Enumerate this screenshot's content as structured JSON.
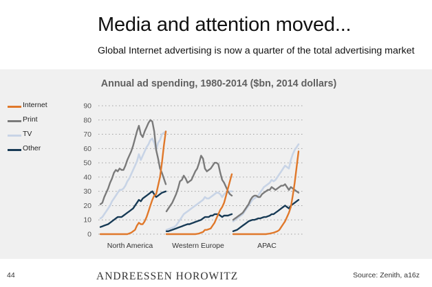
{
  "slide": {
    "title": "Media and attention moved...",
    "subtitle": "Global Internet advertising is now a quarter of the total advertising market",
    "page_number": "44",
    "brand": "ANDREESSEN HOROWITZ",
    "source": "Source: Zenith, a16z"
  },
  "colors": {
    "Internet": "#e0782a",
    "Print": "#7a7a7a",
    "TV": "#c8d4e6",
    "Other": "#173a55",
    "panel_background": "#f0f0f0",
    "gridline": "#a0a0a0"
  },
  "chart_data": {
    "type": "line",
    "title": "Annual ad spending, 1980-2014 ($bn, 2014 dollars)",
    "xlabel": "",
    "ylabel": "",
    "ylim": [
      0,
      90
    ],
    "yticks": [
      0,
      10,
      20,
      30,
      40,
      50,
      60,
      70,
      80,
      90
    ],
    "grid": "horizontal dotted",
    "legend_position": "left",
    "x_range": [
      1980,
      2014
    ],
    "legend": [
      "Internet",
      "Print",
      "TV",
      "Other"
    ],
    "panels": [
      {
        "region": "North America",
        "series": [
          {
            "name": "Internet",
            "x": [
              1980,
              1994,
              1995,
              1996,
              1997,
              1998,
              1999,
              2000,
              2001,
              2002,
              2003,
              2004,
              2005,
              2006,
              2007,
              2008,
              2009,
              2010,
              2011,
              2012,
              2013,
              2014
            ],
            "values": [
              0,
              0,
              0.5,
              1,
              2,
              3,
              6,
              8,
              7,
              7,
              9,
              12,
              16,
              20,
              24,
              27,
              28,
              34,
              40,
              50,
              62,
              72
            ]
          },
          {
            "name": "Print",
            "x": [
              1980,
              1981,
              1982,
              1983,
              1984,
              1985,
              1986,
              1987,
              1988,
              1989,
              1990,
              1991,
              1992,
              1993,
              1994,
              1995,
              1996,
              1997,
              1998,
              1999,
              2000,
              2001,
              2002,
              2003,
              2004,
              2005,
              2006,
              2007,
              2008,
              2009,
              2010,
              2011,
              2012,
              2013,
              2014
            ],
            "values": [
              21,
              22,
              26,
              29,
              32,
              36,
              39,
              43,
              45,
              44,
              46,
              45,
              45,
              48,
              52,
              55,
              58,
              62,
              67,
              72,
              76,
              70,
              68,
              72,
              75,
              78,
              80,
              79,
              72,
              59,
              53,
              46,
              43,
              39,
              35
            ]
          },
          {
            "name": "TV",
            "x": [
              1980,
              1981,
              1982,
              1983,
              1984,
              1985,
              1986,
              1987,
              1988,
              1989,
              1990,
              1991,
              1992,
              1993,
              1994,
              1995,
              1996,
              1997,
              1998,
              1999,
              2000,
              2001,
              2002,
              2003,
              2004,
              2005,
              2006,
              2007,
              2008,
              2009,
              2010,
              2011,
              2012,
              2013,
              2014
            ],
            "values": [
              11,
              12,
              14,
              16,
              18,
              20,
              23,
              25,
              27,
              29,
              31,
              31,
              32,
              34,
              37,
              39,
              42,
              45,
              48,
              51,
              56,
              52,
              55,
              58,
              61,
              63,
              66,
              67,
              64,
              59,
              64,
              66,
              70,
              71,
              72
            ]
          },
          {
            "name": "Other",
            "x": [
              1980,
              1981,
              1982,
              1983,
              1984,
              1985,
              1986,
              1987,
              1988,
              1989,
              1990,
              1991,
              1992,
              1993,
              1994,
              1995,
              1996,
              1997,
              1998,
              1999,
              2000,
              2001,
              2002,
              2003,
              2004,
              2005,
              2006,
              2007,
              2008,
              2009,
              2010,
              2011,
              2012,
              2013,
              2014
            ],
            "values": [
              5,
              5.5,
              6,
              6.5,
              7,
              8,
              9,
              10,
              11,
              12,
              12,
              12,
              13,
              14,
              15,
              16,
              17,
              18,
              20,
              22,
              24,
              23,
              25,
              26,
              27,
              28,
              29,
              30,
              28,
              26,
              27,
              28,
              29,
              29.5,
              30
            ]
          }
        ]
      },
      {
        "region": "Western Europe",
        "series": [
          {
            "name": "Internet",
            "x": [
              1980,
              1995,
              1996,
              1997,
              1998,
              1999,
              2000,
              2001,
              2002,
              2003,
              2004,
              2005,
              2006,
              2007,
              2008,
              2009,
              2010,
              2011,
              2012,
              2013,
              2014
            ],
            "values": [
              0,
              0,
              0.2,
              0.5,
              1,
              1.5,
              3,
              3,
              3.5,
              4,
              6,
              8,
              11,
              14,
              17,
              19,
              22,
              27,
              32,
              37,
              42
            ]
          },
          {
            "name": "Print",
            "x": [
              1980,
              1981,
              1982,
              1983,
              1984,
              1985,
              1986,
              1987,
              1988,
              1989,
              1990,
              1991,
              1992,
              1993,
              1994,
              1995,
              1996,
              1997,
              1998,
              1999,
              2000,
              2001,
              2002,
              2003,
              2004,
              2005,
              2006,
              2007,
              2008,
              2009,
              2010,
              2011,
              2012,
              2013,
              2014
            ],
            "values": [
              16,
              18,
              20,
              22,
              25,
              28,
              32,
              37,
              38,
              41,
              39,
              36,
              37,
              38,
              41,
              44,
              46,
              50,
              55,
              53,
              46,
              44,
              45,
              46,
              48,
              50,
              50,
              49,
              43,
              38,
              36,
              33,
              30,
              28,
              27
            ]
          },
          {
            "name": "TV",
            "x": [
              1980,
              1981,
              1982,
              1983,
              1984,
              1985,
              1986,
              1987,
              1988,
              1989,
              1990,
              1991,
              1992,
              1993,
              1994,
              1995,
              1996,
              1997,
              1998,
              1999,
              2000,
              2001,
              2002,
              2003,
              2004,
              2005,
              2006,
              2007,
              2008,
              2009,
              2010,
              2011,
              2012,
              2013,
              2014
            ],
            "values": [
              3,
              3.5,
              4,
              4.5,
              5,
              6,
              8,
              10,
              12,
              14,
              15,
              16,
              17,
              18,
              19,
              20,
              21,
              22,
              23,
              24,
              26,
              25,
              25,
              26,
              27,
              28,
              29,
              29,
              28,
              26,
              28,
              29,
              30,
              30,
              30
            ]
          },
          {
            "name": "Other",
            "x": [
              1980,
              1981,
              1982,
              1983,
              1984,
              1985,
              1986,
              1987,
              1988,
              1989,
              1990,
              1991,
              1992,
              1993,
              1994,
              1995,
              1996,
              1997,
              1998,
              1999,
              2000,
              2001,
              2002,
              2003,
              2004,
              2005,
              2006,
              2007,
              2008,
              2009,
              2010,
              2011,
              2012,
              2013,
              2014
            ],
            "values": [
              2,
              2,
              2.5,
              3,
              3.5,
              4,
              4.5,
              5,
              5.5,
              6,
              6.5,
              7,
              7,
              7.5,
              8,
              8.5,
              9,
              9.5,
              10,
              11,
              12,
              12,
              12,
              13,
              13,
              14,
              14,
              14,
              13,
              12,
              13,
              13,
              13,
              13.5,
              14
            ]
          }
        ]
      },
      {
        "region": "APAC",
        "series": [
          {
            "name": "Internet",
            "x": [
              1980,
              1997,
              1998,
              1999,
              2000,
              2001,
              2002,
              2003,
              2004,
              2005,
              2006,
              2007,
              2008,
              2009,
              2010,
              2011,
              2012,
              2013,
              2014
            ],
            "values": [
              0,
              0,
              0.2,
              0.4,
              0.7,
              1,
              1.5,
              2,
              3,
              5,
              7,
              9,
              12,
              15,
              19,
              27,
              36,
              47,
              58
            ]
          },
          {
            "name": "Print",
            "x": [
              1980,
              1981,
              1982,
              1983,
              1984,
              1985,
              1986,
              1987,
              1988,
              1989,
              1990,
              1991,
              1992,
              1993,
              1994,
              1995,
              1996,
              1997,
              1998,
              1999,
              2000,
              2001,
              2002,
              2003,
              2004,
              2005,
              2006,
              2007,
              2008,
              2009,
              2010,
              2011,
              2012,
              2013,
              2014
            ],
            "values": [
              10,
              11,
              12,
              13,
              14,
              15,
              17,
              19,
              21,
              24,
              26,
              27,
              27,
              26,
              26,
              28,
              29,
              30,
              31,
              31,
              33,
              32,
              31,
              32,
              33,
              34,
              34,
              35,
              33,
              31,
              33,
              32,
              31,
              30,
              29
            ]
          },
          {
            "name": "TV",
            "x": [
              1980,
              1981,
              1982,
              1983,
              1984,
              1985,
              1986,
              1987,
              1988,
              1989,
              1990,
              1991,
              1992,
              1993,
              1994,
              1995,
              1996,
              1997,
              1998,
              1999,
              2000,
              2001,
              2002,
              2003,
              2004,
              2005,
              2006,
              2007,
              2008,
              2009,
              2010,
              2011,
              2012,
              2013,
              2014
            ],
            "values": [
              9,
              10,
              11,
              12,
              13,
              14,
              16,
              18,
              20,
              22,
              24,
              25,
              26,
              27,
              29,
              31,
              33,
              34,
              35,
              36,
              38,
              37,
              38,
              40,
              42,
              44,
              46,
              48,
              47,
              46,
              52,
              56,
              59,
              61,
              63
            ]
          },
          {
            "name": "Other",
            "x": [
              1980,
              1981,
              1982,
              1983,
              1984,
              1985,
              1986,
              1987,
              1988,
              1989,
              1990,
              1991,
              1992,
              1993,
              1994,
              1995,
              1996,
              1997,
              1998,
              1999,
              2000,
              2001,
              2002,
              2003,
              2004,
              2005,
              2006,
              2007,
              2008,
              2009,
              2010,
              2011,
              2012,
              2013,
              2014
            ],
            "values": [
              2,
              2.5,
              3,
              4,
              5,
              6,
              7,
              8,
              9,
              9.5,
              10,
              10,
              10.5,
              11,
              11,
              11.5,
              12,
              12,
              12.5,
              13,
              14,
              14,
              15,
              16,
              17,
              18,
              19,
              20,
              19,
              18,
              20,
              21,
              22,
              23,
              24
            ]
          }
        ]
      }
    ]
  }
}
